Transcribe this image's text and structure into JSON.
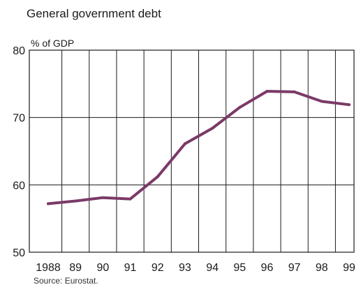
{
  "chart_data": {
    "type": "line",
    "title": "General government debt",
    "ylabel": "% of GDP",
    "source": "Source: Eurostat.",
    "ylim": [
      50,
      80
    ],
    "yticks": [
      50,
      60,
      70,
      80
    ],
    "xlim": [
      1988,
      1999
    ],
    "categories": [
      "1988",
      "89",
      "90",
      "91",
      "92",
      "93",
      "94",
      "95",
      "96",
      "97",
      "98",
      "99"
    ],
    "grid": {
      "vertical": true,
      "horizontal": true
    },
    "series": [
      {
        "color": "#7b3a67",
        "x": [
          1988,
          1989,
          1990,
          1991,
          1992,
          1993,
          1994,
          1995,
          1996,
          1997,
          1998,
          1999
        ],
        "values": [
          57.2,
          57.6,
          58.1,
          57.9,
          61.2,
          66.1,
          68.4,
          71.5,
          73.9,
          73.8,
          72.4,
          71.9
        ]
      }
    ]
  }
}
